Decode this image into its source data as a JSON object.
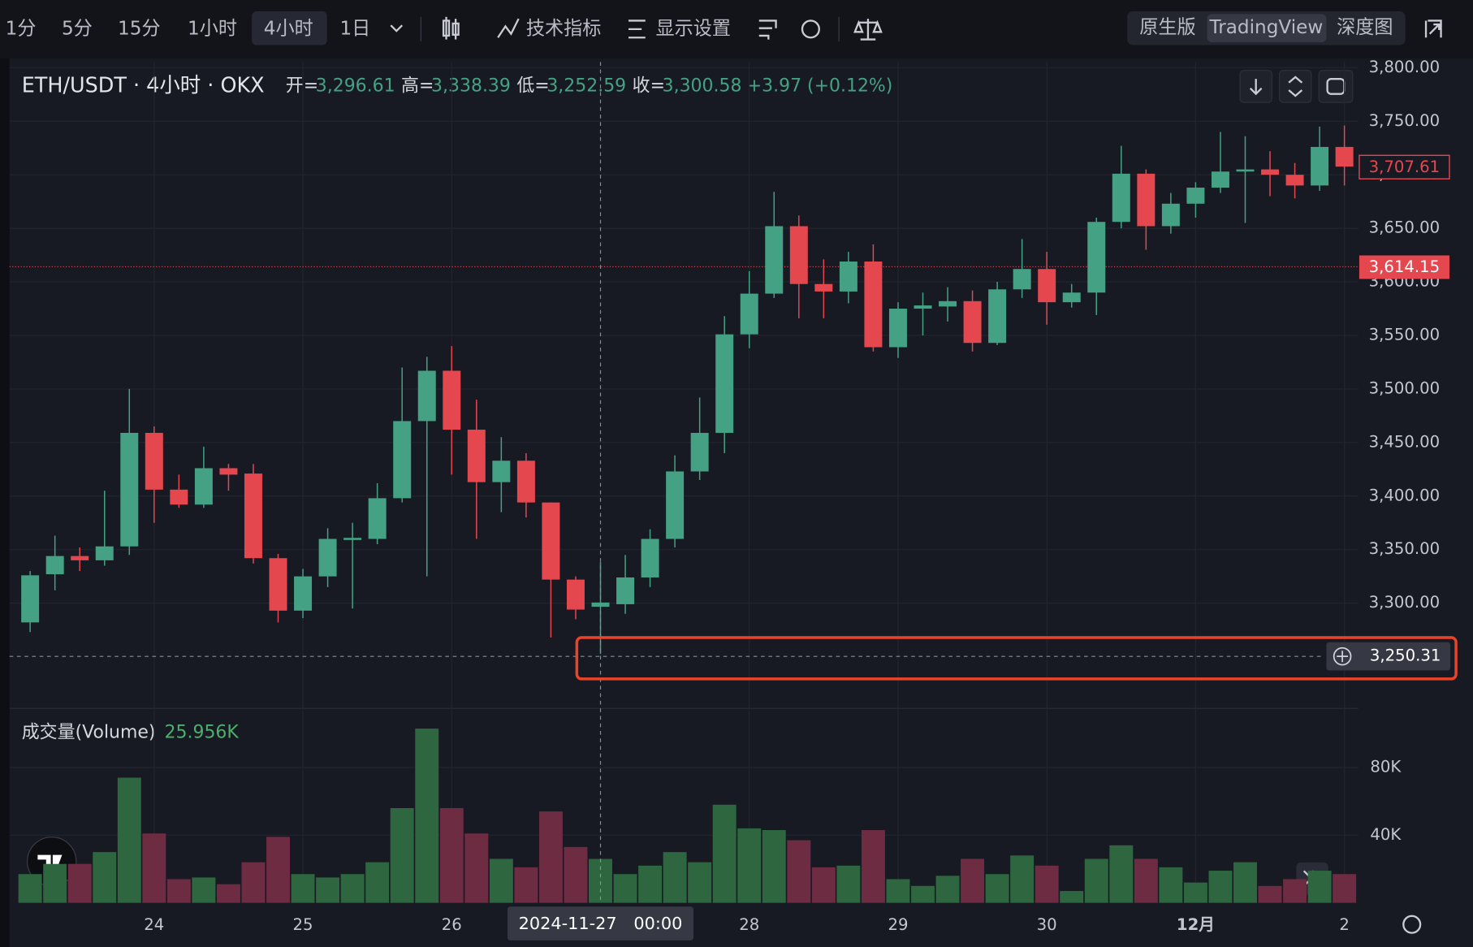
{
  "toolbar": {
    "intervals": [
      "1分",
      "5分",
      "15分",
      "1小时",
      "4小时",
      "1日"
    ],
    "active_interval": 4,
    "tools": [
      "技术指标",
      "显示设置"
    ],
    "views": [
      "原生版",
      "TradingView",
      "深度图"
    ],
    "active_view": 1
  },
  "chart_data": {
    "type": "candlestick",
    "title": "ETH/USDT · 4小时 · OKX",
    "ohlc_labels": [
      "开=",
      "高=",
      "低=",
      "收="
    ],
    "ohlc_values": [
      "3,296.61",
      "3,338.39",
      "3,252.59",
      "3,300.58"
    ],
    "change": "+3.97 (+0.12%)",
    "up_color": "#44a184",
    "down_color": "#e5474f",
    "categories": [
      null,
      null,
      null,
      null,
      null,
      "24",
      null,
      null,
      null,
      null,
      null,
      "25",
      null,
      null,
      null,
      null,
      null,
      "26",
      null,
      null,
      null,
      null,
      null,
      null,
      null,
      null,
      null,
      null,
      null,
      "28",
      null,
      null,
      null,
      null,
      null,
      "29",
      null,
      null,
      null,
      null,
      null,
      "30",
      null,
      null,
      null,
      null,
      null,
      "12月",
      null,
      null,
      null,
      null,
      null,
      "2"
    ],
    "open": [
      3282,
      3327,
      3344,
      3340,
      3353,
      3459,
      3406,
      3392,
      3426,
      3421,
      3342,
      3293,
      3325,
      3359,
      3360,
      3398,
      3470,
      3517,
      3462,
      3413,
      3433,
      3394,
      3322,
      3296.61,
      3299,
      3324,
      3360,
      3423,
      3459,
      3551,
      3589,
      3652,
      3598,
      3591,
      3619,
      3539,
      3575,
      3577,
      3582,
      3543,
      3593,
      3612,
      3581,
      3590,
      3656,
      3701,
      3652,
      3673,
      3688,
      3703,
      3705,
      3700,
      3690,
      3726
    ],
    "high": [
      3330,
      3363,
      3352,
      3405,
      3500,
      3465,
      3420,
      3446,
      3430,
      3430,
      3346,
      3332,
      3370,
      3375,
      3412,
      3520,
      3530,
      3540,
      3490,
      3455,
      3440,
      3394,
      3325,
      3338.39,
      3345,
      3369,
      3438,
      3492,
      3568,
      3610,
      3684,
      3662,
      3621,
      3628,
      3635,
      3581,
      3590,
      3595,
      3592,
      3600,
      3640,
      3628,
      3598,
      3660,
      3727,
      3705,
      3683,
      3693,
      3740,
      3736,
      3722,
      3711,
      3745,
      3746
    ],
    "low": [
      3273,
      3312,
      3330,
      3335,
      3345,
      3375,
      3389,
      3389,
      3405,
      3337,
      3282,
      3286,
      3315,
      3295,
      3355,
      3394,
      3325,
      3420,
      3360,
      3385,
      3380,
      3268,
      3285,
      3252.59,
      3290,
      3315,
      3352,
      3415,
      3440,
      3538,
      3585,
      3566,
      3566,
      3580,
      3535,
      3529,
      3550,
      3563,
      3535,
      3541,
      3585,
      3560,
      3576,
      3569,
      3650,
      3630,
      3645,
      3660,
      3683,
      3655,
      3680,
      3678,
      3685,
      3690
    ],
    "close": [
      3326,
      3344,
      3340,
      3353,
      3459,
      3406,
      3392,
      3426,
      3420,
      3342,
      3293,
      3325,
      3360,
      3361,
      3398,
      3470,
      3517,
      3462,
      3413,
      3433,
      3394,
      3322,
      3294,
      3300.58,
      3324,
      3360,
      3423,
      3459,
      3551,
      3589,
      3652,
      3598,
      3591,
      3619,
      3539,
      3575,
      3578,
      3582,
      3543,
      3593,
      3612,
      3581,
      3590,
      3656,
      3701,
      3652,
      3673,
      3688,
      3703,
      3705,
      3700,
      3690,
      3726,
      3707.61
    ],
    "ylim": [
      3203.5,
      3805.3
    ],
    "yticks": [
      {
        "value": 3300,
        "label": "3,300.00"
      },
      {
        "value": 3350,
        "label": "3,350.00"
      },
      {
        "value": 3400,
        "label": "3,400.00"
      },
      {
        "value": 3450,
        "label": "3,450.00"
      },
      {
        "value": 3500,
        "label": "3,500.00"
      },
      {
        "value": 3550,
        "label": "3,550.00"
      },
      {
        "value": 3600,
        "label": "3,600.00"
      },
      {
        "value": 3650,
        "label": "3,650.00"
      },
      {
        "value": 3700,
        "label": "3,700.00"
      },
      {
        "value": 3750,
        "label": "3,750.00"
      },
      {
        "value": 3800,
        "label": "3,800.00"
      }
    ],
    "grid": true,
    "last_price": {
      "value": 3707.61,
      "label": "3,707.61"
    },
    "mark_price": {
      "value": 3614.15,
      "label": "3,614.15"
    },
    "crosshair": {
      "index": 23,
      "value": 3250.31,
      "label": "3,250.31",
      "time": "2024-11-27　00:00"
    },
    "volume": {
      "title": "成交量(Volume)",
      "value_label": "25.956K",
      "up_color": "#2e673f",
      "down_color": "#6e2c43",
      "values": [
        17,
        23,
        23,
        30,
        74,
        41,
        14,
        15,
        11,
        24,
        39,
        17,
        15,
        17,
        24,
        56,
        103,
        56,
        41,
        26,
        21,
        54,
        33,
        25.956,
        17,
        22,
        30,
        24,
        58,
        44,
        43,
        37,
        21,
        22,
        43,
        14,
        10,
        16,
        26,
        17,
        28,
        22,
        7,
        26,
        34,
        26,
        21,
        12,
        19,
        24,
        10,
        14,
        19,
        17
      ],
      "ylim": [
        0,
        114.4
      ],
      "yticks": [
        {
          "value": 40,
          "label": "40K"
        },
        {
          "value": 80,
          "label": "80K"
        }
      ]
    }
  }
}
